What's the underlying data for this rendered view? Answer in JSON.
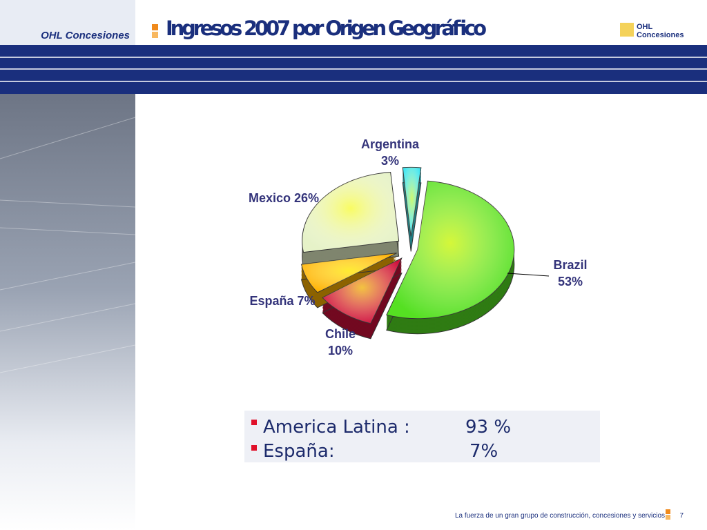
{
  "header": {
    "brand": "OHL Concesiones",
    "title": "Ingresos 2007 por Origen Geográfico",
    "logo": [
      "OHL",
      "Concesiones"
    ]
  },
  "chart_data": {
    "type": "pie",
    "categories": [
      "Brazil",
      "Chile",
      "España",
      "Mexico",
      "Argentina"
    ],
    "values": [
      53,
      10,
      7,
      26,
      3
    ],
    "value_labels": [
      "53%",
      "10%",
      "7%",
      "26%",
      "3%"
    ],
    "colors": [
      "#55e022",
      "#d0103a",
      "#ffb300",
      "#e6f2c8",
      "#40e6f0"
    ]
  },
  "summary": [
    {
      "label": "America Latina :",
      "value": "93 %"
    },
    {
      "label": "España:",
      "value": "7%"
    }
  ],
  "footer": {
    "text": "La fuerza de un gran grupo de construcción, concesiones y servicios",
    "page": "7"
  }
}
